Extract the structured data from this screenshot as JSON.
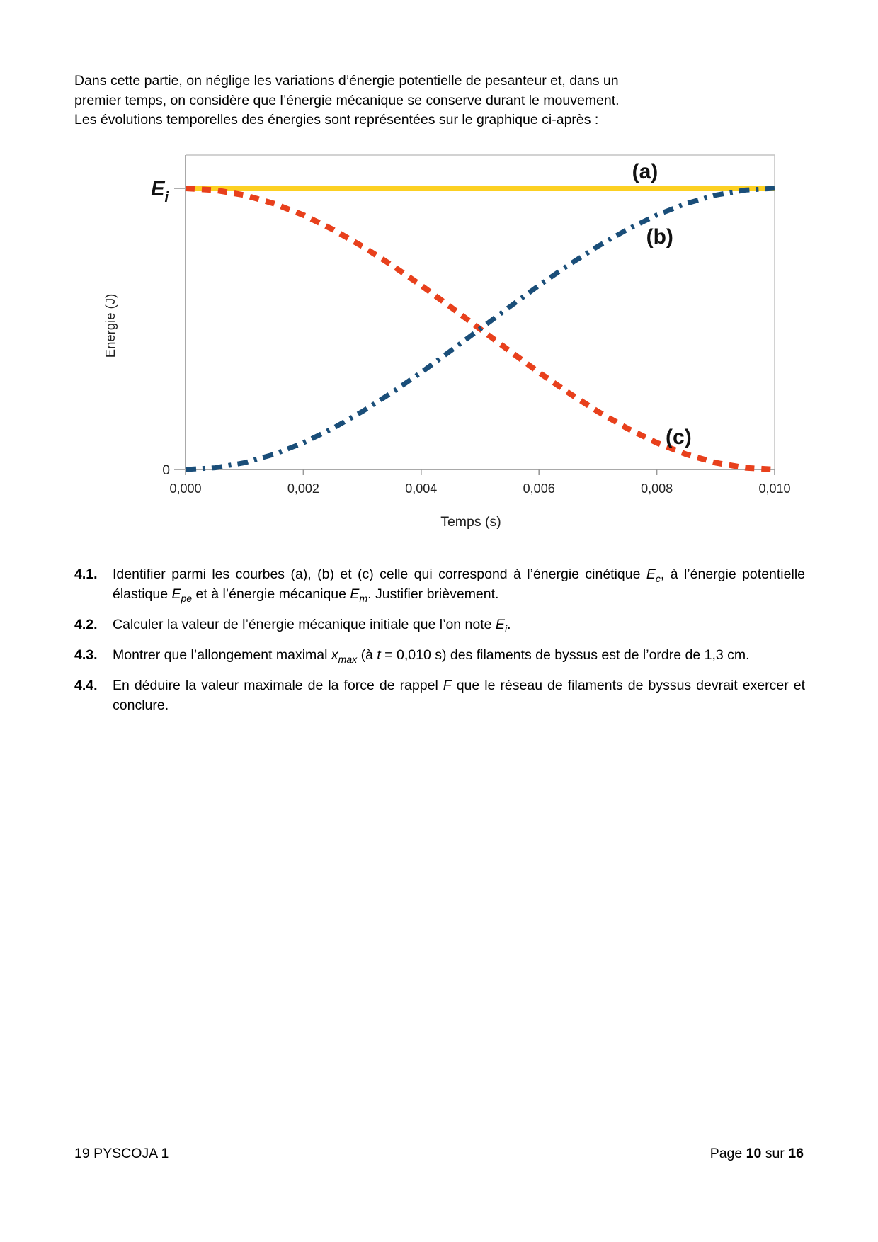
{
  "intro": {
    "lines": [
      "Dans cette partie, on néglige les variations d’énergie potentielle de pesanteur et, dans un",
      "premier temps, on considère que l’énergie mécanique se conserve durant le mouvement.",
      "Les évolutions temporelles des énergies sont représentées sur le graphique ci-après :"
    ]
  },
  "chart_data": {
    "type": "line",
    "title": "",
    "xlabel": "Temps (s)",
    "ylabel": "Energie (J)",
    "xlim": [
      0,
      0.01
    ],
    "x_tick_values": [
      0,
      0.002,
      0.004,
      0.006,
      0.008,
      0.01
    ],
    "x_tick_labels": [
      "0,000",
      "0,002",
      "0,004",
      "0,006",
      "0,008",
      "0,010"
    ],
    "y_axis": {
      "zero_label": "0",
      "top_label_base": "E",
      "top_label_sub": "i",
      "note": "y axis unlabeled numerically; top tick marks the initial mechanical energy Ei, values below are fractions of Ei"
    },
    "grid": false,
    "legend_position": "annotations-on-curves",
    "x": [
      0,
      0.0005,
      0.001,
      0.0015,
      0.002,
      0.0025,
      0.003,
      0.0035,
      0.004,
      0.0045,
      0.005,
      0.0055,
      0.006,
      0.0065,
      0.007,
      0.0075,
      0.008,
      0.0085,
      0.009,
      0.0095,
      0.01
    ],
    "series": [
      {
        "label": "(a)",
        "color": "#fcd022",
        "style": "solid",
        "values": [
          1,
          1,
          1,
          1,
          1,
          1,
          1,
          1,
          1,
          1,
          1,
          1,
          1,
          1,
          1,
          1,
          1,
          1,
          1,
          1,
          1
        ]
      },
      {
        "label": "(c)",
        "color": "#e8401c",
        "style": "dashed",
        "values": [
          1,
          0.994,
          0.976,
          0.946,
          0.905,
          0.854,
          0.794,
          0.727,
          0.655,
          0.578,
          0.5,
          0.422,
          0.345,
          0.273,
          0.206,
          0.146,
          0.095,
          0.054,
          0.024,
          0.006,
          0
        ]
      },
      {
        "label": "(b)",
        "color": "#1a4e79",
        "style": "dashdot",
        "values": [
          0,
          0.006,
          0.024,
          0.054,
          0.095,
          0.146,
          0.206,
          0.273,
          0.345,
          0.422,
          0.5,
          0.578,
          0.655,
          0.727,
          0.794,
          0.854,
          0.905,
          0.946,
          0.976,
          0.994,
          1
        ]
      }
    ],
    "annotations": [
      {
        "text": "(a)",
        "x": 0.0078,
        "y": 1.06
      },
      {
        "text": "(b)",
        "x": 0.00805,
        "y": 0.829
      },
      {
        "text": "(c)",
        "x": 0.00837,
        "y": 0.116
      }
    ]
  },
  "questions": [
    {
      "num": "4.1.",
      "segments": [
        {
          "text": "Identifier parmi les courbes (a), (b) et (c) celle qui correspond à l’énergie cinétique "
        },
        {
          "var": "E",
          "sub": "c"
        },
        {
          "text": ", à l’énergie potentielle élastique "
        },
        {
          "var": "E",
          "sub": "pe"
        },
        {
          "text": " et à l’énergie mécanique "
        },
        {
          "var": "E",
          "sub": "m"
        },
        {
          "text": ". Justifier brièvement."
        }
      ]
    },
    {
      "num": "4.2.",
      "segments": [
        {
          "text": "Calculer la valeur de l’énergie mécanique initiale que l’on note "
        },
        {
          "var": "E",
          "sub": "i"
        },
        {
          "text": "."
        }
      ]
    },
    {
      "num": "4.3.",
      "segments": [
        {
          "text": "Montrer que l’allongement maximal "
        },
        {
          "var": "x",
          "sub": "max"
        },
        {
          "text": " (à "
        },
        {
          "var": "t"
        },
        {
          "text": " = 0,010 s) des filaments de byssus est de l’ordre de 1,3 cm."
        }
      ]
    },
    {
      "num": "4.4.",
      "segments": [
        {
          "text": "En déduire la valeur maximale de la force de rappel "
        },
        {
          "var": "F"
        },
        {
          "text": " que le réseau de filaments de byssus devrait exercer et conclure."
        }
      ]
    }
  ],
  "footer": {
    "code": "19 PYSCOJA 1",
    "page_segments": [
      {
        "text": "Page "
      },
      {
        "text": "10",
        "bold": true
      },
      {
        "text": " sur "
      },
      {
        "text": "16",
        "bold": true
      }
    ]
  }
}
